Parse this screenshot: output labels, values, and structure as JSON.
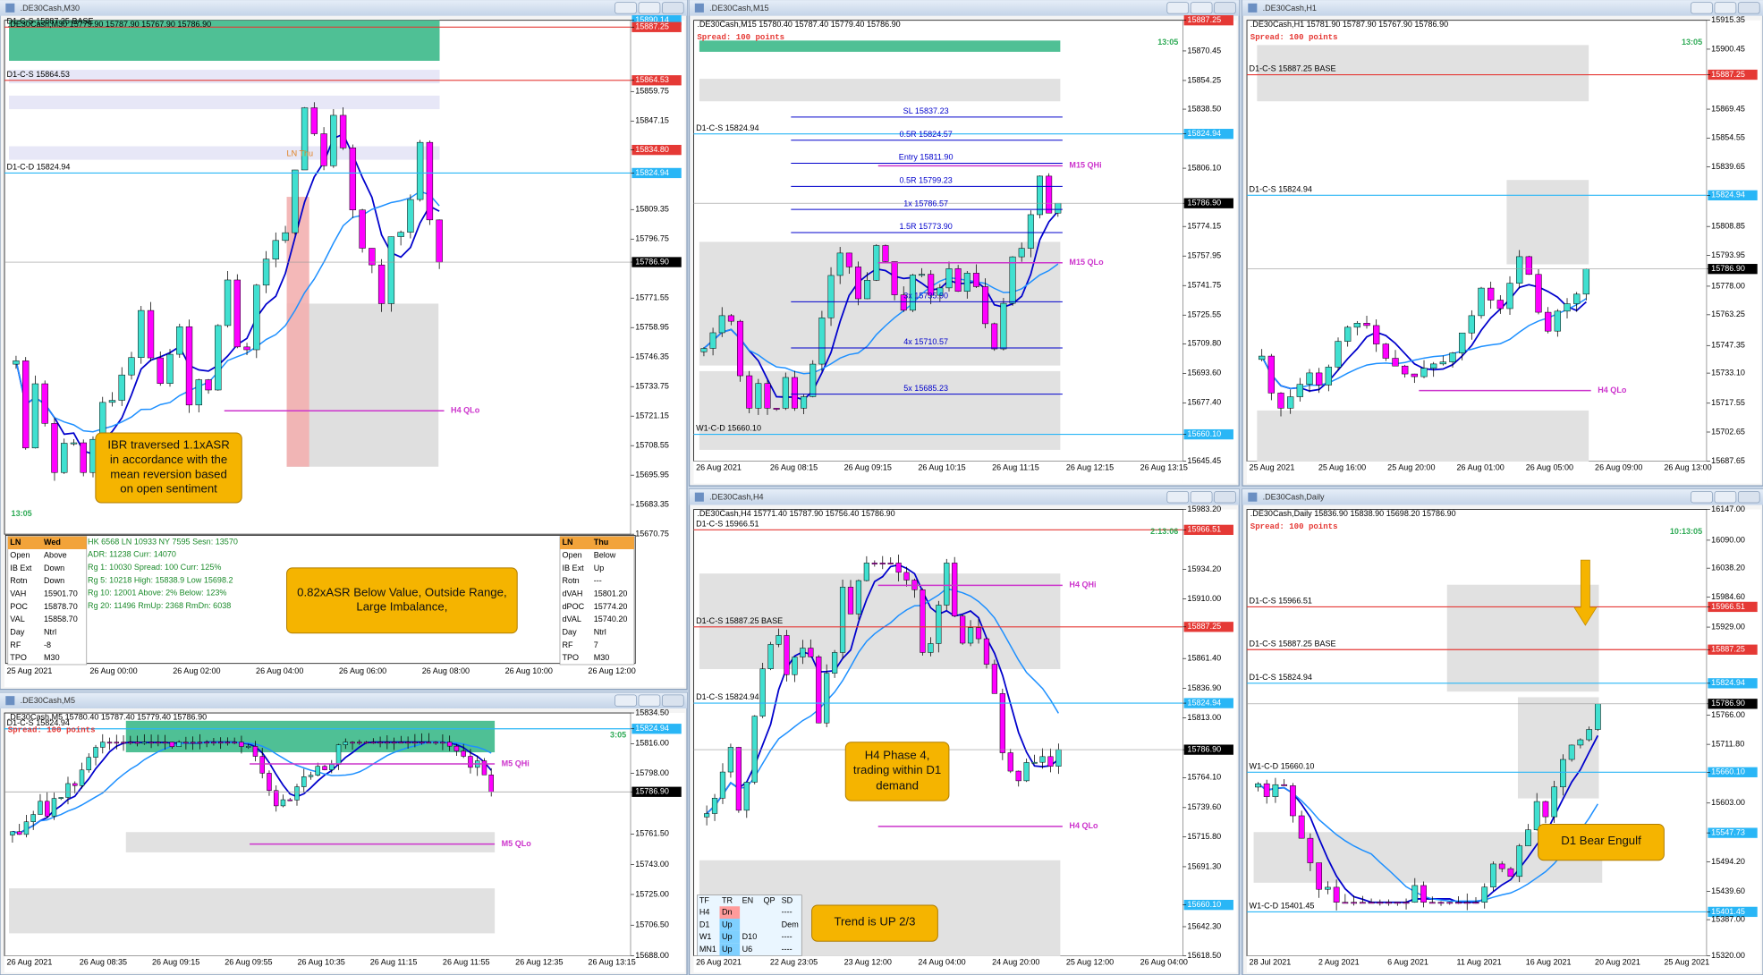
{
  "windows": [
    {
      "title": ".DE30Cash,M30",
      "header": ".DE30Cash,M30 15779.90 15787.90 15767.90 15786.90",
      "timer": "13:05",
      "price_labels": [
        {
          "text": "15890.14",
          "color": "#29b6f6"
        },
        {
          "text": "15887.25",
          "color": "#e53935"
        },
        {
          "text": "15864.53",
          "color": "#e53935"
        },
        "15859.75",
        "15847.15",
        {
          "text": "15834.80",
          "color": "#e53935"
        },
        {
          "text": "15824.94",
          "color": "#29b6f6"
        },
        "15809.35",
        "15796.75",
        {
          "text": "15786.90",
          "color": "#000000"
        },
        "15771.55",
        "15758.95",
        "15746.35",
        "15733.75",
        "15721.15",
        "15708.55",
        "15695.95",
        "15683.35",
        "15670.75"
      ],
      "time_labels": [
        "25 Aug 2021",
        "26 Aug 00:00",
        "26 Aug 02:00",
        "26 Aug 04:00",
        "26 Aug 06:00",
        "26 Aug 08:00",
        "26 Aug 10:00",
        "26 Aug 12:00"
      ],
      "levels": [
        {
          "text": "D1-C-S 15887.25 BASE",
          "color": "#e53935"
        },
        {
          "text": "D1-C-S 15864.53",
          "color": "#e53935"
        },
        {
          "text": "D1-C-D 15824.94",
          "color": "#29b6f6"
        },
        {
          "text": "LN Thu",
          "color": "#e08020",
          "side": "center"
        },
        {
          "text": "H4 QLo",
          "color": "#cc33cc",
          "side": "right"
        }
      ],
      "annotations": [
        "IBR traversed 1.1xASR in accordance with the mean reversion based on open sentiment",
        "0.82xASR Below Value, Outside Range, Large Imbalance,"
      ],
      "session_left": {
        "header": [
          "LN",
          "Wed"
        ],
        "rows": [
          [
            "Open",
            "Above"
          ],
          [
            "IB Ext",
            "Down"
          ],
          [
            "Rotn",
            "Down"
          ],
          [
            "VAH",
            "15901.70"
          ],
          [
            "POC",
            "15878.70"
          ],
          [
            "VAL",
            "15858.70"
          ],
          [
            "Day",
            "Ntrl"
          ],
          [
            "RF",
            "-8"
          ],
          [
            "TPO",
            "M30"
          ]
        ]
      },
      "stats": [
        "HK 6568  LN 10933  NY 7595  Sesn: 13570",
        "ADR: 11238  Curr: 14070",
        "Rg 1: 10030  Spread: 100  Curr: 125%",
        "Rg 5: 10218  High: 15838.9  Low 15698.2",
        "Rg 10: 12001  Above: 2%  Below: 123%",
        "Rg 20: 11496  RmUp: 2368  RmDn: 6038"
      ],
      "session_right": {
        "header": [
          "LN",
          "Thu"
        ],
        "rows": [
          [
            "Open",
            "Below"
          ],
          [
            "IB Ext",
            "Up"
          ],
          [
            "Rotn",
            "---"
          ],
          [
            "dVAH",
            "15801.20"
          ],
          [
            "dPOC",
            "15774.20"
          ],
          [
            "dVAL",
            "15740.20"
          ],
          [
            "Day",
            "Ntrl"
          ],
          [
            "RF",
            "7"
          ],
          [
            "TPO",
            "M30"
          ]
        ]
      }
    },
    {
      "title": ".DE30Cash,M15",
      "header": ".DE30Cash,M15 15780.40 15787.40 15779.40 15786.90",
      "spread": "Spread: 100 points",
      "timer": "13:05",
      "price_labels": [
        {
          "text": "15887.25",
          "color": "#e53935"
        },
        "15870.45",
        "15854.25",
        "15838.50",
        {
          "text": "15824.94",
          "color": "#29b6f6"
        },
        "15806.10",
        {
          "text": "15786.90",
          "color": "#000000"
        },
        "15774.15",
        "15757.95",
        "15741.75",
        "15725.55",
        "15709.80",
        "15693.60",
        "15677.40",
        {
          "text": "15660.10",
          "color": "#29b6f6"
        },
        "15645.45"
      ],
      "time_labels": [
        "26 Aug 2021",
        "26 Aug 08:15",
        "26 Aug 09:15",
        "26 Aug 10:15",
        "26 Aug 11:15",
        "26 Aug 12:15",
        "26 Aug 13:15"
      ],
      "levels": [
        {
          "text": "D1-C-S 15824.94",
          "color": "#29b6f6"
        },
        {
          "text": "W1-C-D 15660.10",
          "color": "#29b6f6"
        },
        {
          "text": "M15 QHi",
          "color": "#cc33cc",
          "side": "right"
        },
        {
          "text": "M15 QLo",
          "color": "#cc33cc",
          "side": "right"
        },
        {
          "text": "SL 15837.23",
          "color": "#0000cc",
          "side": "center"
        },
        {
          "text": "0.5R 15824.57",
          "color": "#0000cc",
          "side": "center"
        },
        {
          "text": "Entry 15811.90",
          "color": "#0000cc",
          "side": "center"
        },
        {
          "text": "0.5R 15799.23",
          "color": "#0000cc",
          "side": "center"
        },
        {
          "text": "1x 15786.57",
          "color": "#0000cc",
          "side": "center"
        },
        {
          "text": "1.5R 15773.90",
          "color": "#0000cc",
          "side": "center"
        },
        {
          "text": "3x 15735.90",
          "color": "#0000cc",
          "side": "center"
        },
        {
          "text": "4x 15710.57",
          "color": "#0000cc",
          "side": "center"
        },
        {
          "text": "5x 15685.23",
          "color": "#0000cc",
          "side": "center"
        }
      ]
    },
    {
      "title": ".DE30Cash,H1",
      "header": ".DE30Cash,H1 15781.90 15787.90 15767.90 15786.90",
      "spread": "Spread: 100 points",
      "timer": "13:05",
      "price_labels": [
        "15915.35",
        "15900.45",
        {
          "text": "15887.25",
          "color": "#e53935"
        },
        "15869.45",
        "15854.55",
        "15839.65",
        {
          "text": "15824.94",
          "color": "#29b6f6"
        },
        "15808.85",
        "15793.95",
        {
          "text": "15786.90",
          "color": "#000000"
        },
        "15778.00",
        "15763.25",
        "15747.35",
        "15733.10",
        "15717.55",
        "15702.65",
        "15687.65"
      ],
      "time_labels": [
        "25 Aug 2021",
        "25 Aug 16:00",
        "25 Aug 20:00",
        "26 Aug 01:00",
        "26 Aug 05:00",
        "26 Aug 09:00",
        "26 Aug 13:00"
      ],
      "levels": [
        {
          "text": "D1-C-S 15887.25 BASE",
          "color": "#e53935"
        },
        {
          "text": "D1-C-S 15824.94",
          "color": "#29b6f6"
        },
        {
          "text": "H4 QLo",
          "color": "#cc33cc",
          "side": "right"
        }
      ]
    },
    {
      "title": ".DE30Cash,M5",
      "header": ".DE30Cash,M5 15780.40 15787.40 15779.40 15786.90",
      "spread": "Spread: 100 points",
      "timer": "3:05",
      "price_labels": [
        "15834.50",
        {
          "text": "15824.94",
          "color": "#29b6f6"
        },
        "15816.00",
        "15798.00",
        {
          "text": "15786.90",
          "color": "#000000"
        },
        "15761.50",
        "15743.00",
        "15725.00",
        "15706.50",
        "15688.00"
      ],
      "time_labels": [
        "26 Aug 2021",
        "26 Aug 08:35",
        "26 Aug 09:15",
        "26 Aug 09:55",
        "26 Aug 10:35",
        "26 Aug 11:15",
        "26 Aug 11:55",
        "26 Aug 12:35",
        "26 Aug 13:15"
      ],
      "levels": [
        {
          "text": "D1-C-S 15824.94",
          "color": "#29b6f6"
        },
        {
          "text": "M5 QHi",
          "color": "#cc33cc",
          "side": "right"
        },
        {
          "text": "M5 QLo",
          "color": "#cc33cc",
          "side": "right"
        }
      ]
    },
    {
      "title": ".DE30Cash,H4",
      "header": ".DE30Cash,H4 15771.40 15787.90 15756.40 15786.90",
      "timer": "2:13:06",
      "price_labels": [
        "15983.20",
        {
          "text": "15966.51",
          "color": "#e53935"
        },
        "15934.20",
        "15910.00",
        {
          "text": "15887.25",
          "color": "#e53935"
        },
        "15861.40",
        "15836.90",
        {
          "text": "15824.94",
          "color": "#29b6f6"
        },
        "15813.00",
        {
          "text": "15786.90",
          "color": "#000000"
        },
        "15764.10",
        "15739.60",
        "15715.80",
        "15691.30",
        {
          "text": "15660.10",
          "color": "#29b6f6"
        },
        "15642.30",
        "15618.50"
      ],
      "time_labels": [
        "26 Aug 2021",
        "22 Aug 23:05",
        "23 Aug 12:00",
        "24 Aug 04:00",
        "24 Aug 20:00",
        "25 Aug 12:00",
        "26 Aug 04:00"
      ],
      "levels": [
        {
          "text": "D1-C-S 15966.51",
          "color": "#e53935"
        },
        {
          "text": "D1-C-S 15887.25 BASE",
          "color": "#e53935"
        },
        {
          "text": "D1-C-S 15824.94",
          "color": "#29b6f6"
        },
        {
          "text": "H4 QHi",
          "color": "#cc33cc",
          "side": "right"
        },
        {
          "text": "H4 QLo",
          "color": "#cc33cc",
          "side": "right"
        }
      ],
      "annotations": [
        "H4 Phase 4, trading within D1 demand",
        "Trend is UP 2/3"
      ],
      "trend_table": {
        "header": [
          "TF",
          "TR",
          "EN",
          "QP",
          "SD"
        ],
        "rows": [
          {
            "tf": "H4",
            "tr": "Dn",
            "sd": "----"
          },
          {
            "tf": "D1",
            "tr": "Up",
            "sd": "Dem"
          },
          {
            "tf": "W1",
            "tr": "Up",
            "en": "D10",
            "sd": "----"
          },
          {
            "tf": "MN1",
            "tr": "Up",
            "en": "U6",
            "sd": "----"
          }
        ]
      }
    },
    {
      "title": ".DE30Cash,Daily",
      "header": ".DE30Cash,Daily 15836.90 15838.90 15698.20 15786.90",
      "spread": "Spread: 100 points",
      "timer": "10:13:05",
      "price_labels": [
        "16147.00",
        "16090.00",
        "16038.20",
        "15984.60",
        {
          "text": "15966.51",
          "color": "#e53935"
        },
        "15929.00",
        {
          "text": "15887.25",
          "color": "#e53935"
        },
        {
          "text": "15824.94",
          "color": "#29b6f6"
        },
        {
          "text": "15786.90",
          "color": "#000000"
        },
        "15766.00",
        "15711.80",
        {
          "text": "15660.10",
          "color": "#29b6f6"
        },
        "15603.00",
        {
          "text": "15547.73",
          "color": "#29b6f6"
        },
        "15494.20",
        "15439.60",
        {
          "text": "15401.45",
          "color": "#29b6f6"
        },
        "15387.00",
        "15320.00"
      ],
      "time_labels": [
        "28 Jul 2021",
        "2 Aug 2021",
        "6 Aug 2021",
        "11 Aug 2021",
        "16 Aug 2021",
        "20 Aug 2021",
        "25 Aug 2021"
      ],
      "levels": [
        {
          "text": "D1-C-S 15966.51",
          "color": "#e53935"
        },
        {
          "text": "D1-C-S 15887.25 BASE",
          "color": "#e53935"
        },
        {
          "text": "D1-C-S 15824.94",
          "color": "#29b6f6"
        },
        {
          "text": "W1-C-D 15660.10",
          "color": "#29b6f6"
        },
        {
          "text": "W1-C-D 15401.45",
          "color": "#29b6f6"
        }
      ],
      "annotations": [
        "D1 Bear Engulf"
      ]
    }
  ]
}
